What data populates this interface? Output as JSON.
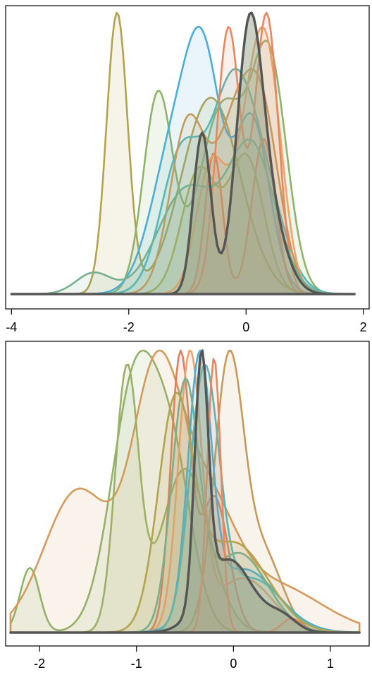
{
  "chart_data": [
    {
      "type": "area",
      "title": "",
      "xlabel": "",
      "ylabel": "",
      "xlim": [
        -4.1,
        2.1
      ],
      "ylim": [
        0,
        1
      ],
      "x_ticks": [
        "-4",
        "-2",
        "0",
        "2"
      ],
      "x_tick_values": [
        -4,
        -2,
        0,
        2
      ],
      "grid": false,
      "legend": "none",
      "x_range": [
        -4,
        1.85
      ],
      "highlight_color": "#555555",
      "series": [
        {
          "color": "#b3a34d",
          "peaks": [
            [
              -2.2,
              1.0,
              0.18
            ],
            [
              -0.6,
              0.7,
              0.5
            ]
          ]
        },
        {
          "color": "#8fb36b",
          "peaks": [
            [
              -1.5,
              0.8,
              0.25
            ],
            [
              -0.4,
              0.75,
              0.4
            ],
            [
              0.4,
              0.9,
              0.3
            ]
          ]
        },
        {
          "color": "#4aaed8",
          "peaks": [
            [
              -1.2,
              0.78,
              0.4
            ],
            [
              -0.7,
              0.95,
              0.3
            ],
            [
              0.1,
              0.9,
              0.3
            ]
          ]
        },
        {
          "color": "#55b8b8",
          "peaks": [
            [
              -1.1,
              0.72,
              0.35
            ],
            [
              -0.3,
              0.8,
              0.35
            ],
            [
              0.2,
              0.6,
              0.4
            ]
          ]
        },
        {
          "color": "#e07f5e",
          "peaks": [
            [
              -0.55,
              0.5,
              0.15
            ],
            [
              0.3,
              0.55,
              0.2
            ]
          ]
        },
        {
          "color": "#f0a36a",
          "peaks": [
            [
              -0.6,
              0.75,
              0.25
            ],
            [
              0.1,
              0.95,
              0.3
            ],
            [
              0.4,
              0.9,
              0.25
            ]
          ]
        },
        {
          "color": "#9db066",
          "peaks": [
            [
              -0.8,
              0.45,
              0.3
            ],
            [
              0.0,
              0.5,
              0.3
            ]
          ]
        },
        {
          "color": "#c79a5b",
          "peaks": [
            [
              -1.0,
              0.8,
              0.3
            ],
            [
              -0.2,
              0.75,
              0.35
            ],
            [
              0.3,
              0.7,
              0.3
            ]
          ]
        },
        {
          "color": "#e8875f",
          "peaks": [
            [
              -0.3,
              0.95,
              0.2
            ],
            [
              0.35,
              1.0,
              0.2
            ]
          ]
        },
        {
          "color": "#76b090",
          "peaks": [
            [
              -2.6,
              0.08,
              0.3
            ],
            [
              -1.0,
              0.4,
              0.5
            ],
            [
              0.1,
              0.55,
              0.4
            ]
          ]
        }
      ],
      "highlight": {
        "color": "#555555",
        "peaks": [
          [
            -0.75,
            0.7,
            0.15
          ],
          [
            0.05,
            1.0,
            0.22
          ],
          [
            0.35,
            0.35,
            0.3
          ]
        ]
      }
    },
    {
      "type": "area",
      "title": "",
      "xlabel": "",
      "ylabel": "",
      "xlim": [
        -2.35,
        1.4
      ],
      "ylim": [
        0,
        1
      ],
      "x_ticks": [
        "-2",
        "-1",
        "0",
        "1"
      ],
      "x_tick_values": [
        -2,
        -1,
        0,
        1
      ],
      "grid": false,
      "legend": "none",
      "x_range": [
        -2.3,
        1.3
      ],
      "highlight_color": "#555555",
      "series": [
        {
          "color": "#8fb36b",
          "peaks": [
            [
              -2.1,
              0.25,
              0.1
            ],
            [
              -1.0,
              1.0,
              0.25
            ],
            [
              -0.6,
              0.5,
              0.2
            ]
          ]
        },
        {
          "color": "#d69a5c",
          "peaks": [
            [
              -1.6,
              0.6,
              0.35
            ],
            [
              -0.8,
              1.0,
              0.25
            ],
            [
              -0.3,
              0.5,
              0.3
            ],
            [
              0.4,
              0.2,
              0.5
            ]
          ]
        },
        {
          "color": "#c79a5b",
          "peaks": [
            [
              -0.05,
              1.0,
              0.15
            ],
            [
              0.3,
              0.3,
              0.2
            ]
          ]
        },
        {
          "color": "#9db066",
          "peaks": [
            [
              -1.1,
              0.95,
              0.12
            ],
            [
              -0.5,
              0.6,
              0.25
            ]
          ]
        },
        {
          "color": "#e07f5e",
          "peaks": [
            [
              -0.55,
              1.0,
              0.1
            ],
            [
              -0.2,
              0.5,
              0.15
            ]
          ]
        },
        {
          "color": "#f0a36a",
          "peaks": [
            [
              -0.45,
              1.0,
              0.12
            ],
            [
              0.1,
              0.2,
              0.3
            ]
          ]
        },
        {
          "color": "#4aaed8",
          "peaks": [
            [
              -0.35,
              1.0,
              0.12
            ],
            [
              0.1,
              0.25,
              0.35
            ]
          ]
        },
        {
          "color": "#55b8b8",
          "peaks": [
            [
              -0.3,
              0.95,
              0.15
            ],
            [
              0.2,
              0.2,
              0.3
            ]
          ]
        },
        {
          "color": "#76b090",
          "peaks": [
            [
              -0.5,
              0.9,
              0.14
            ],
            [
              0.05,
              0.3,
              0.3
            ]
          ]
        },
        {
          "color": "#b3a34d",
          "peaks": [
            [
              -0.6,
              0.85,
              0.18
            ],
            [
              0.0,
              0.35,
              0.35
            ]
          ]
        },
        {
          "color": "#e8875f",
          "peaks": [
            [
              -0.2,
              0.97,
              0.07
            ],
            [
              0.6,
              0.05,
              0.1
            ]
          ]
        }
      ],
      "highlight": {
        "color": "#555555",
        "peaks": [
          [
            -0.33,
            1.0,
            0.07
          ],
          [
            -0.05,
            0.3,
            0.25
          ],
          [
            0.5,
            0.06,
            0.15
          ]
        ]
      }
    }
  ]
}
